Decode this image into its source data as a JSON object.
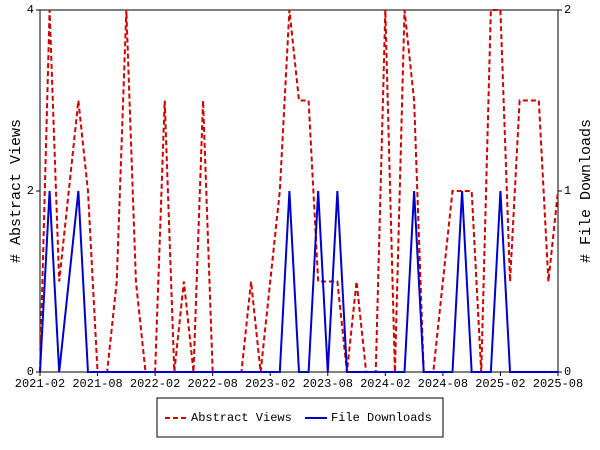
{
  "chart_data": {
    "type": "line",
    "categories": [
      "2021-02",
      null,
      null,
      null,
      null,
      null,
      "2021-08",
      null,
      null,
      null,
      null,
      null,
      "2022-02",
      null,
      null,
      null,
      null,
      null,
      "2022-08",
      null,
      null,
      null,
      null,
      null,
      "2023-02",
      null,
      null,
      null,
      null,
      null,
      "2023-08",
      null,
      null,
      null,
      null,
      null,
      "2024-02",
      null,
      null,
      null,
      null,
      null,
      "2024-08",
      null,
      null,
      null,
      null,
      null,
      "2025-02",
      null,
      null,
      null,
      null,
      null,
      "2025-08"
    ],
    "ylabel": "# Abstract Views",
    "y2label": "# File Downloads",
    "ylim": [
      0,
      4
    ],
    "yticks": [
      0,
      2,
      4
    ],
    "y2lim": [
      0,
      2
    ],
    "y2ticks": [
      0,
      1,
      2
    ],
    "series": [
      {
        "name": "Abstract Views",
        "color": "#cc0000",
        "dash": true,
        "values": [
          0,
          4,
          1,
          2,
          3,
          2,
          0,
          0,
          1,
          4,
          1,
          0,
          0,
          3,
          0,
          1,
          0,
          3,
          0,
          0,
          0,
          0,
          1,
          0,
          1,
          2,
          4,
          3,
          3,
          1,
          1,
          1,
          0,
          1,
          0,
          0,
          4,
          0,
          4,
          3,
          0,
          0,
          1,
          2,
          2,
          2,
          0,
          4,
          4,
          1,
          3,
          3,
          3,
          1,
          2
        ]
      },
      {
        "name": "File Downloads",
        "color": "#0000cc",
        "axis": "y2",
        "values": [
          0,
          1,
          0,
          0.5,
          1,
          0,
          0,
          0,
          0,
          0,
          0,
          0,
          0,
          0,
          0,
          0,
          0,
          0,
          0,
          0,
          0,
          0,
          0,
          0,
          0,
          0,
          1,
          0,
          0,
          1,
          0,
          1,
          0,
          0,
          0,
          0,
          0,
          0,
          0,
          1,
          0,
          0,
          0,
          0,
          1,
          0,
          0,
          0,
          1,
          0,
          0,
          0,
          0,
          0,
          0
        ]
      }
    ],
    "legend": "bottom",
    "grid": false
  }
}
